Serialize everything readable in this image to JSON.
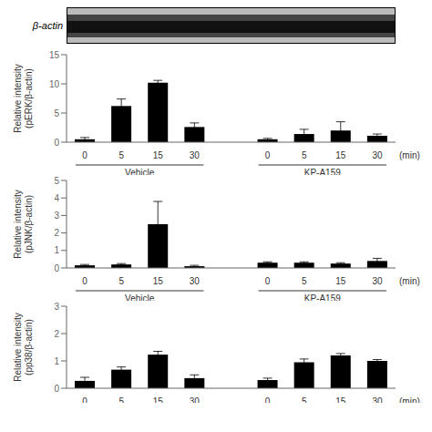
{
  "chart_data": [
    {
      "type": "blot",
      "annotations": [
        "β-actin"
      ]
    },
    {
      "type": "bar",
      "ylabel": "Relative intensity\n(pERK/β-actin)",
      "xlabel": "(min)",
      "categories": [
        "0",
        "5",
        "15",
        "30"
      ],
      "series": [
        {
          "name": "Vehicle",
          "color": "#000000",
          "values": [
            0.5,
            6.2,
            10.2,
            2.6
          ],
          "errors": [
            0.3,
            1.2,
            0.4,
            0.7
          ]
        },
        {
          "name": "KP-A159",
          "color": "#000000",
          "values": [
            0.5,
            1.4,
            2.0,
            1.1
          ],
          "errors": [
            0.15,
            0.8,
            1.5,
            0.3
          ]
        }
      ],
      "ylim": [
        0,
        15
      ],
      "yticks": [
        0,
        5,
        10,
        15
      ],
      "grid": false
    },
    {
      "type": "bar",
      "ylabel": "Relative intensity\n(pJNK/β-actin)",
      "xlabel": "(min)",
      "categories": [
        "0",
        "5",
        "15",
        "30"
      ],
      "series": [
        {
          "name": "Vehicle",
          "color": "#000000",
          "values": [
            0.15,
            0.2,
            2.5,
            0.1
          ],
          "errors": [
            0.05,
            0.05,
            1.3,
            0.05
          ]
        },
        {
          "name": "KP-A159",
          "color": "#000000",
          "values": [
            0.3,
            0.3,
            0.25,
            0.4
          ],
          "errors": [
            0.05,
            0.05,
            0.05,
            0.15
          ]
        }
      ],
      "ylim": [
        0,
        5
      ],
      "yticks": [
        0,
        1,
        2,
        3,
        4,
        5
      ],
      "grid": false
    },
    {
      "type": "bar",
      "ylabel": "Relative intensity\n(pp38/β-actin)",
      "xlabel": "(min)",
      "categories": [
        "0",
        "5",
        "15",
        "30"
      ],
      "series": [
        {
          "color": "#000000",
          "values": [
            0.27,
            0.68,
            1.23,
            0.37
          ],
          "errors": [
            0.13,
            0.1,
            0.12,
            0.12
          ]
        },
        {
          "color": "#000000",
          "values": [
            0.3,
            0.95,
            1.2,
            1.0
          ],
          "errors": [
            0.07,
            0.12,
            0.07,
            0.05
          ]
        }
      ],
      "ylim": [
        0,
        3
      ],
      "yticks": [
        0,
        1,
        2,
        3
      ],
      "grid": false
    }
  ]
}
